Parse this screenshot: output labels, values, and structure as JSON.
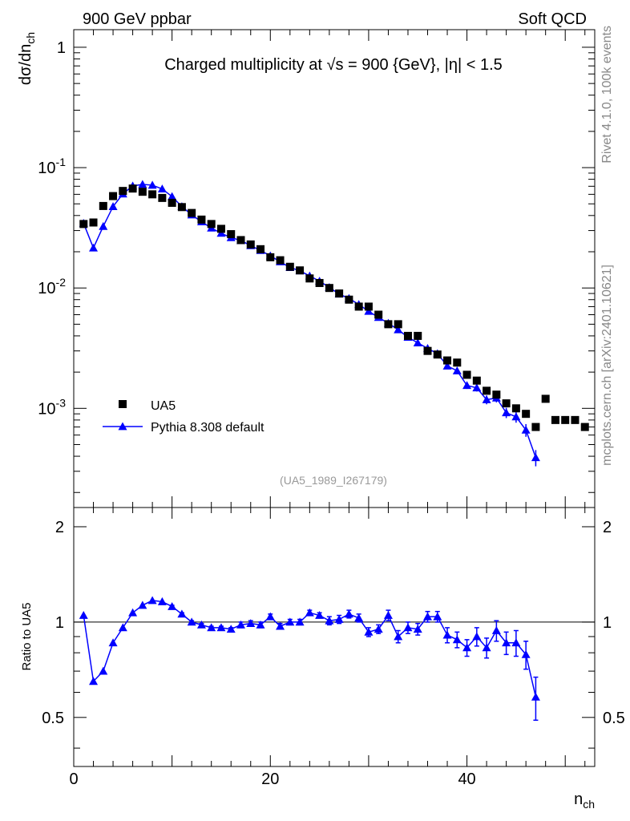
{
  "header": {
    "left_label": "900 GeV ppbar",
    "right_label": "Soft QCD"
  },
  "side_labels": {
    "rivet": "Rivet 4.1.0,  100k events",
    "mcplots": "mcplots.cern.ch [arXiv:2401.10621]"
  },
  "chart_data": {
    "type": "scatter",
    "title": "Charged multiplicity at √s = 900 {GeV}, |η| < 1.5",
    "analysis_tag": "(UA5_1989_I267179)",
    "xlabel": "n_ch",
    "ylabel": "dσ/dn_ch",
    "ratio_ylabel": "Ratio to UA5",
    "xlim": [
      0,
      53
    ],
    "ylim": [
      0.00015,
      1.4
    ],
    "ylog": true,
    "ratio_ylim": [
      0.35,
      2.3
    ],
    "ratio_ylog": true,
    "x_tick_labels": [
      "0",
      "20",
      "40"
    ],
    "y_tick_labels": [
      {
        "base": "10",
        "exp": "-3",
        "value": 0.001
      },
      {
        "base": "10",
        "exp": "-2",
        "value": 0.01
      },
      {
        "base": "10",
        "exp": "-1",
        "value": 0.1
      },
      {
        "base": "1",
        "exp": "",
        "value": 1
      }
    ],
    "ratio_tick_labels": [
      {
        "label": "0.5",
        "value": 0.5
      },
      {
        "label": "1",
        "value": 1
      },
      {
        "label": "2",
        "value": 2
      }
    ],
    "legend": [
      {
        "label": "UA5",
        "marker": "square",
        "color": "#000000"
      },
      {
        "label": "Pythia 8.308 default",
        "marker": "triangle",
        "color": "#0000ff"
      }
    ],
    "series": [
      {
        "name": "UA5",
        "color": "#000000",
        "x": [
          1,
          2,
          3,
          4,
          5,
          6,
          7,
          8,
          9,
          10,
          11,
          12,
          13,
          14,
          15,
          16,
          17,
          18,
          19,
          20,
          21,
          22,
          23,
          24,
          25,
          26,
          27,
          28,
          29,
          30,
          31,
          32,
          33,
          34,
          35,
          36,
          37,
          38,
          39,
          40,
          41,
          42,
          43,
          44,
          45,
          46,
          47,
          48,
          49,
          50,
          51,
          52
        ],
        "values": [
          0.034,
          0.035,
          0.048,
          0.058,
          0.064,
          0.067,
          0.063,
          0.06,
          0.056,
          0.051,
          0.047,
          0.042,
          0.037,
          0.034,
          0.031,
          0.028,
          0.025,
          0.023,
          0.021,
          0.018,
          0.017,
          0.015,
          0.014,
          0.012,
          0.011,
          0.01,
          0.009,
          0.008,
          0.007,
          0.007,
          0.006,
          0.005,
          0.005,
          0.004,
          0.004,
          0.003,
          0.0028,
          0.0025,
          0.0024,
          0.0019,
          0.0017,
          0.0014,
          0.0013,
          0.0011,
          0.001,
          0.0009,
          0.0007,
          0.0012,
          0.0008,
          0.0008,
          0.0008,
          0.0007
        ]
      },
      {
        "name": "Pythia 8.308 default",
        "color": "#0000ff",
        "x": [
          1,
          2,
          3,
          4,
          5,
          6,
          7,
          8,
          9,
          10,
          11,
          12,
          13,
          14,
          15,
          16,
          17,
          18,
          19,
          20,
          21,
          22,
          23,
          24,
          25,
          26,
          27,
          28,
          29,
          30,
          31,
          32,
          33,
          34,
          35,
          36,
          37,
          38,
          39,
          40,
          41,
          42,
          43,
          44,
          45,
          46,
          47
        ],
        "values": [
          0.0345,
          0.0215,
          0.0325,
          0.0475,
          0.0605,
          0.0705,
          0.0725,
          0.0715,
          0.0665,
          0.0575,
          0.0475,
          0.0405,
          0.0355,
          0.0315,
          0.0285,
          0.0262,
          0.0248,
          0.0225,
          0.0205,
          0.0185,
          0.0165,
          0.0148,
          0.0139,
          0.0126,
          0.0114,
          0.0101,
          0.0089,
          0.0082,
          0.0073,
          0.0064,
          0.0057,
          0.0051,
          0.0045,
          0.0039,
          0.0035,
          0.00315,
          0.00285,
          0.00225,
          0.00205,
          0.00155,
          0.00148,
          0.00118,
          0.00122,
          0.00092,
          0.00085,
          0.00066,
          0.00039
        ],
        "errors": [
          0,
          0,
          0,
          0,
          0,
          0,
          0,
          0,
          0,
          0,
          0,
          0,
          0,
          0,
          0,
          0,
          0,
          0,
          0,
          0,
          0,
          0,
          0,
          0,
          0,
          0,
          0,
          0,
          0,
          0,
          0,
          0,
          0,
          0,
          0,
          0.0001,
          0.0001,
          0.0001,
          0.0001,
          0.0001,
          0.0001,
          0.0001,
          0.0001,
          9e-05,
          9e-05,
          8e-05,
          6e-05
        ]
      }
    ],
    "ratio": {
      "name": "Pythia 8.308 default / UA5",
      "x": [
        1,
        2,
        3,
        4,
        5,
        6,
        7,
        8,
        9,
        10,
        11,
        12,
        13,
        14,
        15,
        16,
        17,
        18,
        19,
        20,
        21,
        22,
        23,
        24,
        25,
        26,
        27,
        28,
        29,
        30,
        31,
        32,
        33,
        34,
        35,
        36,
        37,
        38,
        39,
        40,
        41,
        42,
        43,
        44,
        45,
        46,
        47
      ],
      "values": [
        1.05,
        0.65,
        0.7,
        0.86,
        0.96,
        1.07,
        1.13,
        1.17,
        1.16,
        1.12,
        1.06,
        1.0,
        0.98,
        0.96,
        0.96,
        0.95,
        0.98,
        0.99,
        0.98,
        1.04,
        0.97,
        1.0,
        1.0,
        1.07,
        1.05,
        1.01,
        1.02,
        1.06,
        1.03,
        0.93,
        0.95,
        1.05,
        0.9,
        0.96,
        0.95,
        1.04,
        1.04,
        0.91,
        0.88,
        0.83,
        0.9,
        0.83,
        0.94,
        0.86,
        0.86,
        0.79,
        0.58
      ],
      "errors": [
        0,
        0,
        0,
        0,
        0,
        0,
        0,
        0,
        0,
        0.01,
        0.01,
        0.01,
        0.01,
        0.01,
        0.01,
        0.01,
        0.02,
        0.02,
        0.02,
        0.02,
        0.02,
        0.02,
        0.02,
        0.02,
        0.02,
        0.03,
        0.03,
        0.03,
        0.03,
        0.03,
        0.03,
        0.04,
        0.04,
        0.04,
        0.04,
        0.04,
        0.04,
        0.05,
        0.05,
        0.05,
        0.06,
        0.06,
        0.07,
        0.07,
        0.08,
        0.08,
        0.09
      ]
    }
  }
}
